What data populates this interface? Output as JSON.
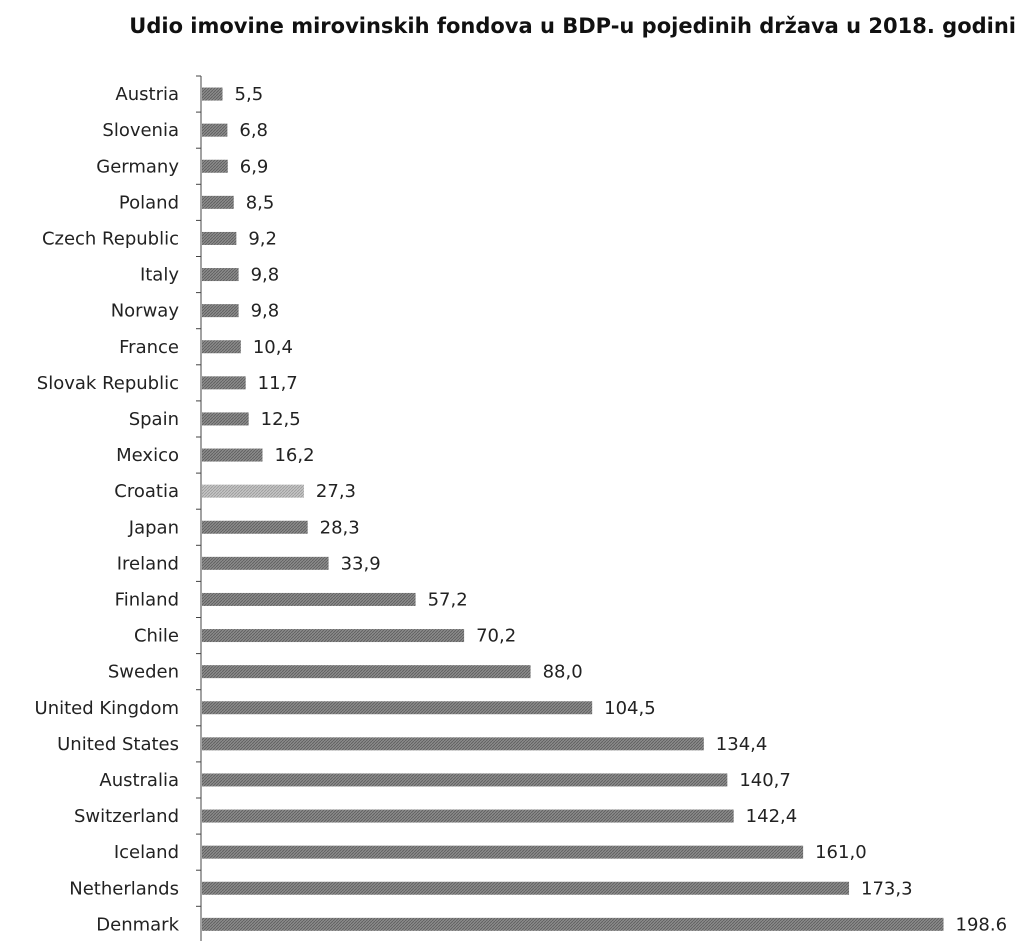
{
  "chart_data": {
    "type": "bar",
    "orientation": "horizontal",
    "title": "Udio imovine mirovinskih fondova u BDP-u pojedinih država u 2018. godini",
    "xlabel": "",
    "ylabel": "",
    "grid": false,
    "xlim": [
      0,
      200
    ],
    "categories": [
      "Austria",
      "Slovenia",
      "Germany",
      "Poland",
      "Czech Republic",
      "Italy",
      "Norway",
      "France",
      "Slovak Republic",
      "Spain",
      "Mexico",
      "Croatia",
      "Japan",
      "Ireland",
      "Finland",
      "Chile",
      "Sweden",
      "United Kingdom",
      "United States",
      "Australia",
      "Switzerland",
      "Iceland",
      "Netherlands",
      "Denmark"
    ],
    "values": [
      5.5,
      6.8,
      6.9,
      8.5,
      9.2,
      9.8,
      9.8,
      10.4,
      11.7,
      12.5,
      16.2,
      27.3,
      28.3,
      33.9,
      57.2,
      70.2,
      88.0,
      104.5,
      134.4,
      140.7,
      142.4,
      161.0,
      173.3,
      198.6
    ],
    "value_labels": [
      "5,5",
      "6,8",
      "6,9",
      "8,5",
      "9,2",
      "9,8",
      "9,8",
      "10,4",
      "11,7",
      "12,5",
      "16,2",
      "27,3",
      "28,3",
      "33,9",
      "57,2",
      "70,2",
      "88,0",
      "104,5",
      "134,4",
      "140,7",
      "142,4",
      "161,0",
      "173,3",
      "198.6"
    ],
    "bar_color": "#8a8a8a",
    "highlight_category": "Croatia",
    "highlight_color": "#c4c4c4"
  }
}
